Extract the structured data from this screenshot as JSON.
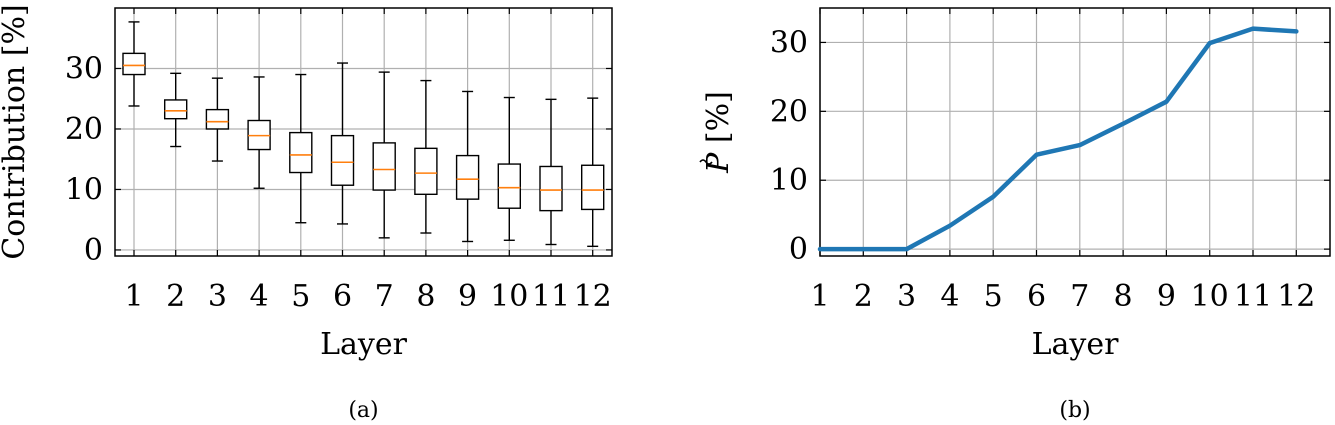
{
  "chart_data": [
    {
      "type": "box",
      "panel_label": "(a)",
      "xlabel": "Layer",
      "ylabel": "Contribution [%]",
      "categories": [
        "1",
        "2",
        "3",
        "4",
        "5",
        "6",
        "7",
        "8",
        "9",
        "10",
        "11",
        "12"
      ],
      "ylim": [
        -1,
        40
      ],
      "yticks": [
        0,
        10,
        20,
        30
      ],
      "grid": true,
      "box_color": "#000000",
      "median_color": "#ff7f0e",
      "boxes": [
        {
          "whislo": 23.8,
          "q1": 29.0,
          "med": 30.5,
          "q3": 32.5,
          "whishi": 37.7
        },
        {
          "whislo": 17.1,
          "q1": 21.7,
          "med": 23.0,
          "q3": 24.8,
          "whishi": 29.2
        },
        {
          "whislo": 14.7,
          "q1": 20.0,
          "med": 21.2,
          "q3": 23.2,
          "whishi": 28.4
        },
        {
          "whislo": 10.2,
          "q1": 16.6,
          "med": 18.9,
          "q3": 21.4,
          "whishi": 28.6
        },
        {
          "whislo": 4.5,
          "q1": 12.8,
          "med": 15.7,
          "q3": 19.4,
          "whishi": 29.0
        },
        {
          "whislo": 4.3,
          "q1": 10.7,
          "med": 14.5,
          "q3": 18.9,
          "whishi": 30.9
        },
        {
          "whislo": 2.0,
          "q1": 9.9,
          "med": 13.3,
          "q3": 17.7,
          "whishi": 29.4
        },
        {
          "whislo": 2.8,
          "q1": 9.2,
          "med": 12.7,
          "q3": 16.8,
          "whishi": 28.0
        },
        {
          "whislo": 1.4,
          "q1": 8.4,
          "med": 11.7,
          "q3": 15.6,
          "whishi": 26.2
        },
        {
          "whislo": 1.6,
          "q1": 6.9,
          "med": 10.3,
          "q3": 14.2,
          "whishi": 25.2
        },
        {
          "whislo": 0.9,
          "q1": 6.5,
          "med": 9.9,
          "q3": 13.8,
          "whishi": 24.9
        },
        {
          "whislo": 0.6,
          "q1": 6.7,
          "med": 9.9,
          "q3": 14.0,
          "whishi": 25.1
        }
      ]
    },
    {
      "type": "line",
      "panel_label": "(b)",
      "xlabel": "Layer",
      "ylabel_main": "P",
      "ylabel_unit": " [%]",
      "categories": [
        "1",
        "2",
        "3",
        "4",
        "5",
        "6",
        "7",
        "8",
        "9",
        "10",
        "11",
        "12"
      ],
      "ylim": [
        -1,
        35
      ],
      "yticks": [
        0,
        10,
        20,
        30
      ],
      "grid": true,
      "series": [
        {
          "color": "#1f77b4",
          "values": [
            0,
            0,
            0,
            3.4,
            7.6,
            13.7,
            15.1,
            18.2,
            21.4,
            29.9,
            32.0,
            31.6
          ]
        }
      ]
    }
  ]
}
